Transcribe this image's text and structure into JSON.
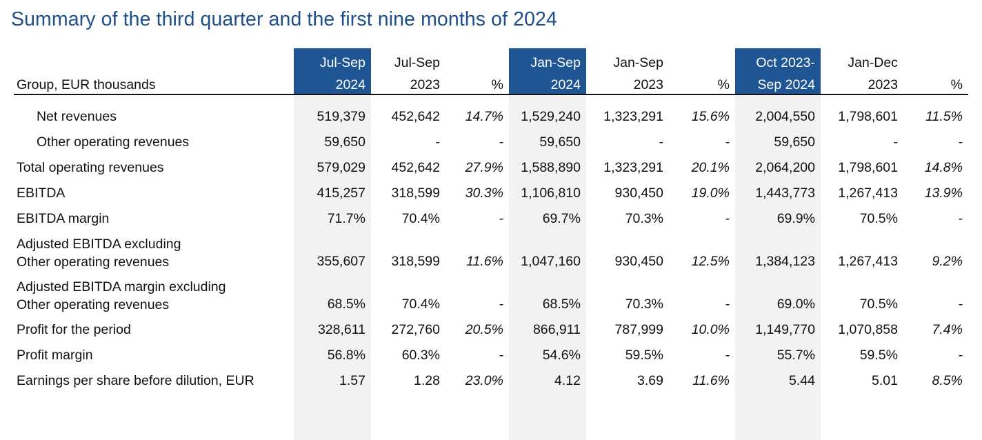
{
  "title": "Summary of the third quarter and the first nine months of 2024",
  "table": {
    "row_header_label": "Group, EUR thousands",
    "columns": [
      {
        "line1": "Jul-Sep",
        "line2": "2024",
        "highlight": true
      },
      {
        "line1": "Jul-Sep",
        "line2": "2023",
        "highlight": false
      },
      {
        "line1": "",
        "line2": "%",
        "highlight": false
      },
      {
        "line1": "Jan-Sep",
        "line2": "2024",
        "highlight": true
      },
      {
        "line1": "Jan-Sep",
        "line2": "2023",
        "highlight": false
      },
      {
        "line1": "",
        "line2": "%",
        "highlight": false
      },
      {
        "line1": "Oct 2023-",
        "line2": "Sep 2024",
        "highlight": true
      },
      {
        "line1": "Jan-Dec",
        "line2": "2023",
        "highlight": false
      },
      {
        "line1": "",
        "line2": "%",
        "highlight": false
      }
    ],
    "rows": [
      {
        "label": [
          "Net revenues"
        ],
        "indent": true,
        "values": [
          "519,379",
          "452,642",
          "14.7%",
          "1,529,240",
          "1,323,291",
          "15.6%",
          "2,004,550",
          "1,798,601",
          "11.5%"
        ]
      },
      {
        "label": [
          "Other operating revenues"
        ],
        "indent": true,
        "values": [
          "59,650",
          "-",
          "-",
          "59,650",
          "-",
          "-",
          "59,650",
          "-",
          "-"
        ]
      },
      {
        "label": [
          "Total operating revenues"
        ],
        "indent": false,
        "values": [
          "579,029",
          "452,642",
          "27.9%",
          "1,588,890",
          "1,323,291",
          "20.1%",
          "2,064,200",
          "1,798,601",
          "14.8%"
        ]
      },
      {
        "label": [
          "EBITDA"
        ],
        "indent": false,
        "values": [
          "415,257",
          "318,599",
          "30.3%",
          "1,106,810",
          "930,450",
          "19.0%",
          "1,443,773",
          "1,267,413",
          "13.9%"
        ]
      },
      {
        "label": [
          "EBITDA margin"
        ],
        "indent": false,
        "values": [
          "71.7%",
          "70.4%",
          "-",
          "69.7%",
          "70.3%",
          "-",
          "69.9%",
          "70.5%",
          "-"
        ]
      },
      {
        "label": [
          "Adjusted EBITDA excluding",
          "Other operating revenues"
        ],
        "indent": false,
        "values": [
          "355,607",
          "318,599",
          "11.6%",
          "1,047,160",
          "930,450",
          "12.5%",
          "1,384,123",
          "1,267,413",
          "9.2%"
        ]
      },
      {
        "label": [
          "Adjusted EBITDA margin excluding",
          "Other operating revenues"
        ],
        "indent": false,
        "values": [
          "68.5%",
          "70.4%",
          "-",
          "68.5%",
          "70.3%",
          "-",
          "69.0%",
          "70.5%",
          "-"
        ]
      },
      {
        "label": [
          "Profit for the period"
        ],
        "indent": false,
        "values": [
          "328,611",
          "272,760",
          "20.5%",
          "866,911",
          "787,999",
          "10.0%",
          "1,149,770",
          "1,070,858",
          "7.4%"
        ]
      },
      {
        "label": [
          "Profit margin"
        ],
        "indent": false,
        "values": [
          "56.8%",
          "60.3%",
          "-",
          "54.6%",
          "59.5%",
          "-",
          "55.7%",
          "59.5%",
          "-"
        ]
      },
      {
        "label": [
          "Earnings per share before dilution, EUR"
        ],
        "indent": false,
        "values": [
          "1.57",
          "1.28",
          "23.0%",
          "4.12",
          "3.69",
          "11.6%",
          "5.44",
          "5.01",
          "8.5%"
        ]
      }
    ]
  }
}
